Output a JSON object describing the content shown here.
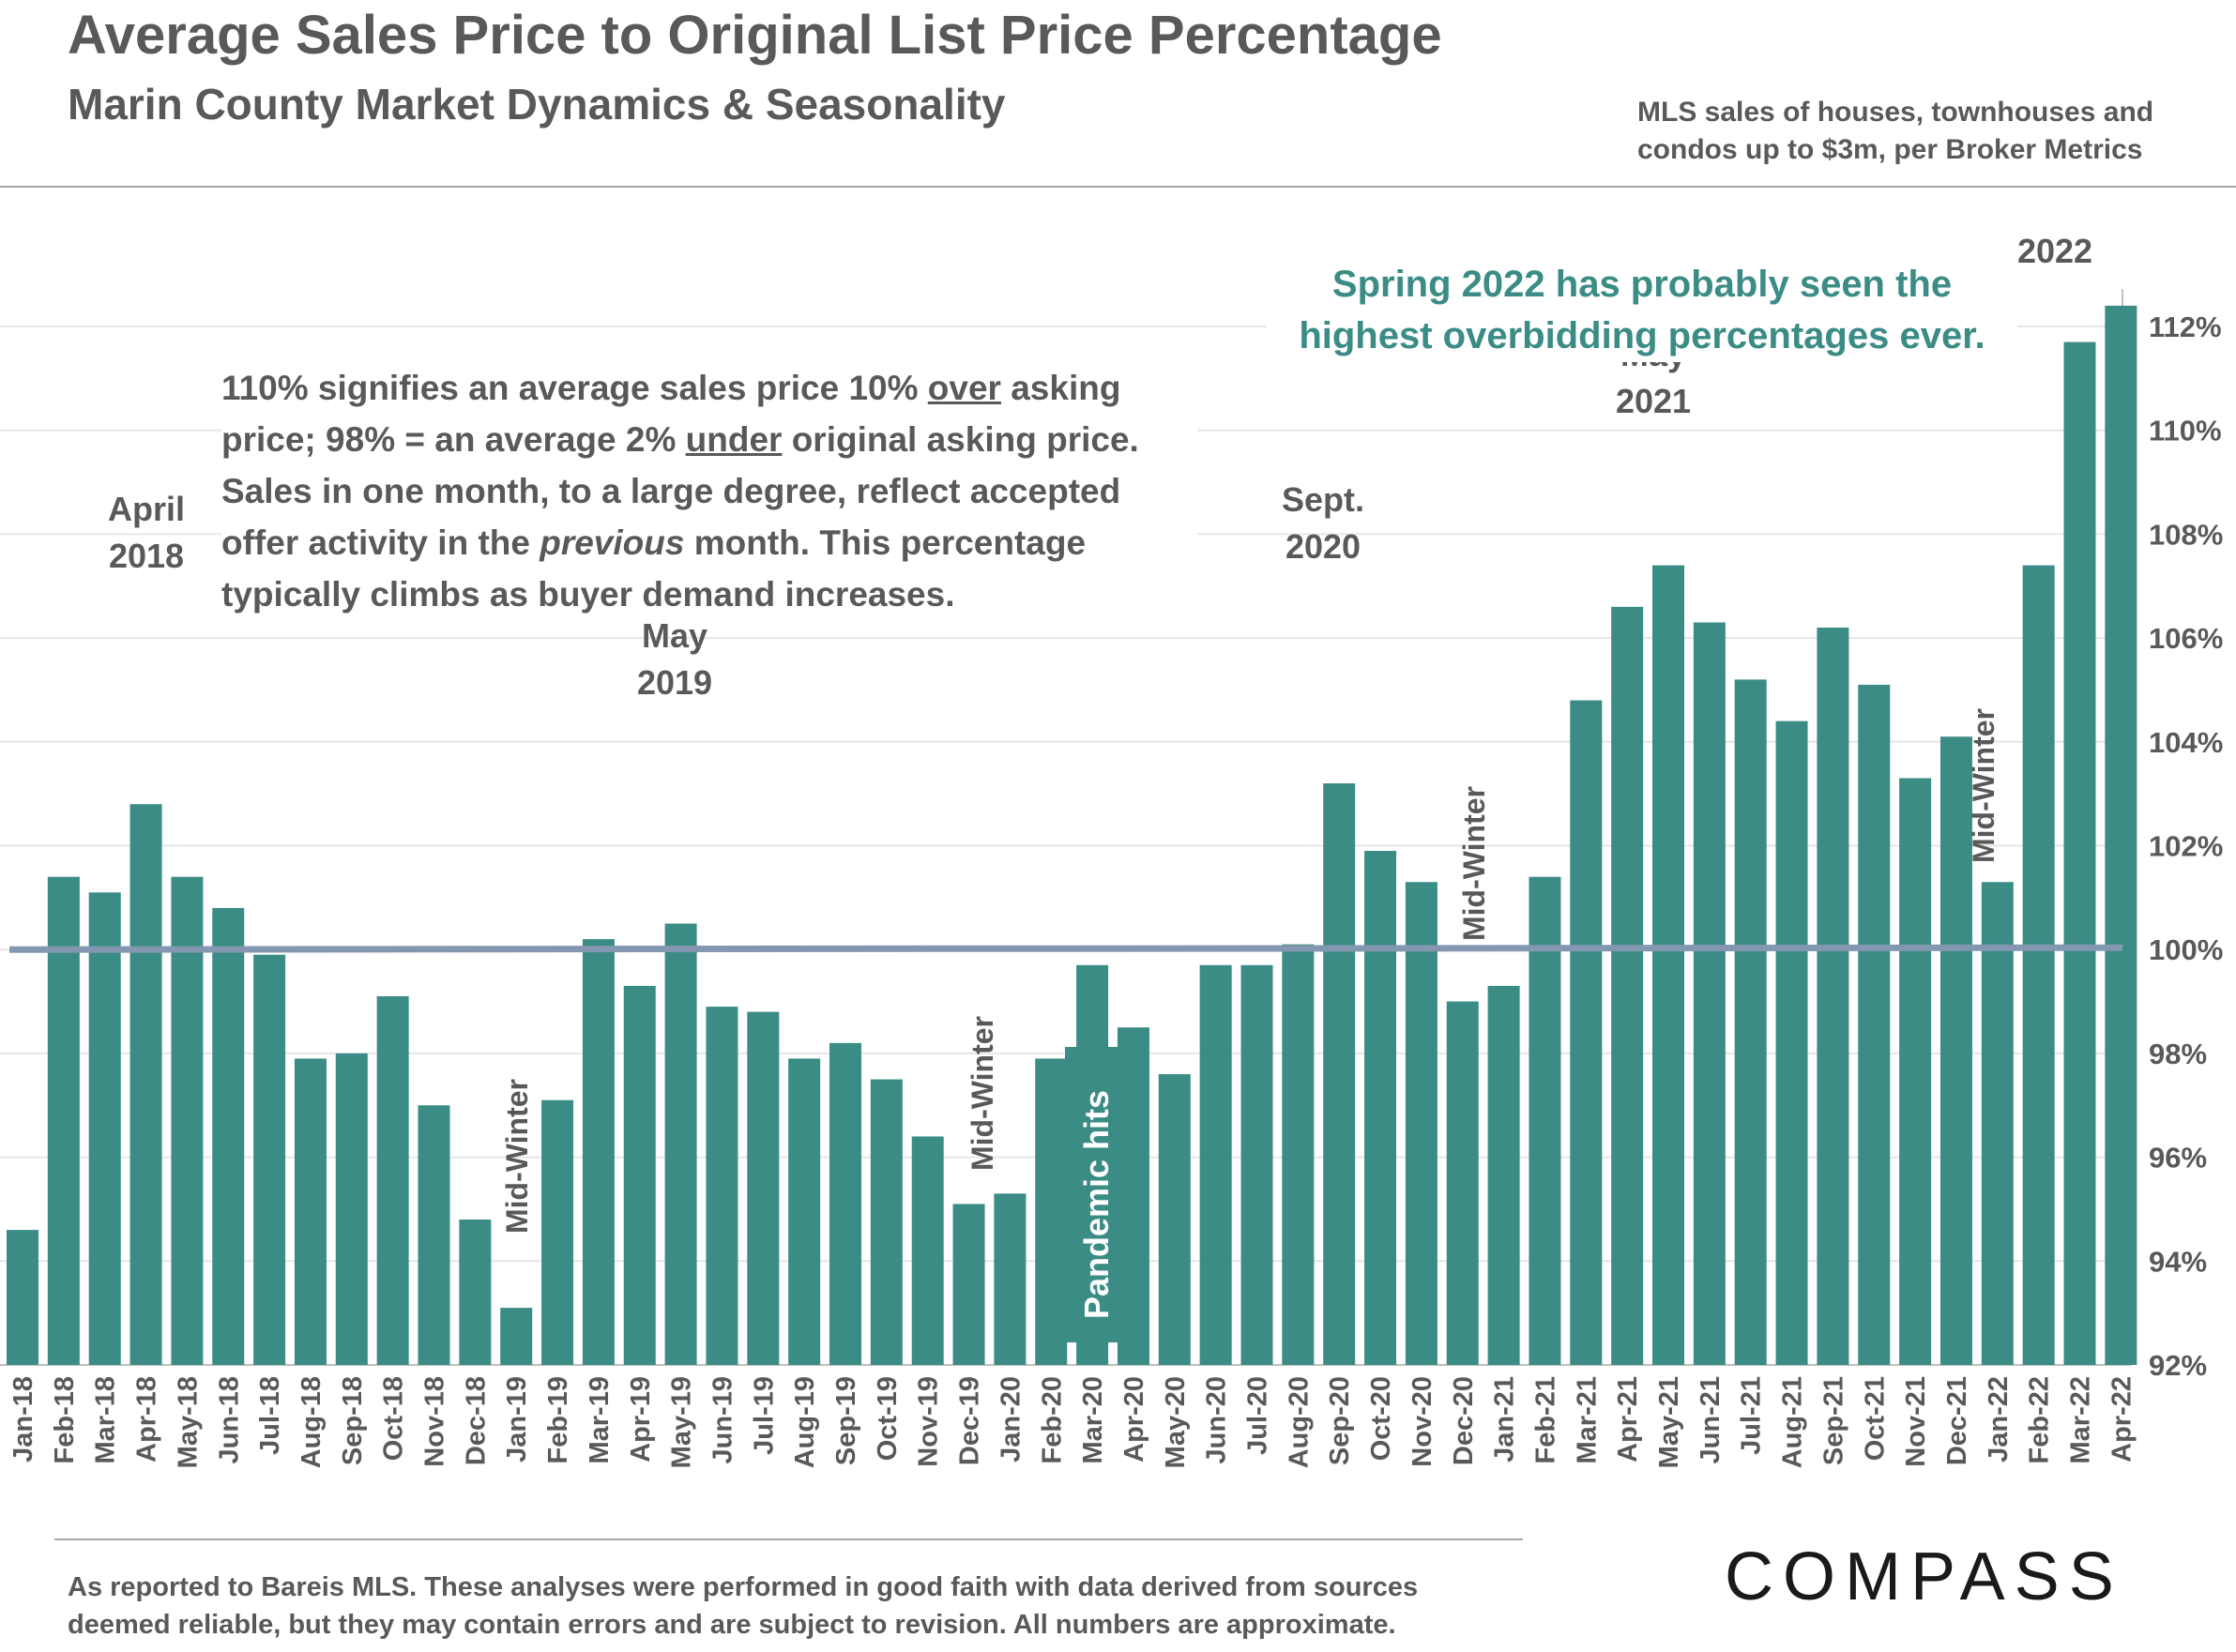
{
  "header": {
    "title": "Average Sales Price to Original List Price Percentage",
    "subtitle": "Marin County Market Dynamics & Seasonality",
    "source_lines": [
      "MLS sales of houses, townhouses and",
      "condos up to $3m, per Broker Metrics"
    ]
  },
  "note": {
    "line1_pre": "110% signifies an average sales price 10% ",
    "line1_u": "over",
    "line1_post": " asking",
    "line2_pre": "price; 98% = an average 2% ",
    "line2_u": "under",
    "line2_post": " original asking price.",
    "line3": "Sales in one month, to a large degree, reflect accepted",
    "line4_pre": "offer activity in the ",
    "line4_em": "previous",
    "line4_post": " month. This percentage",
    "line5": "typically climbs as buyer demand increases."
  },
  "callout": {
    "lines": [
      "Spring 2022 has probably seen the",
      "highest overbidding percentages ever."
    ]
  },
  "footer": {
    "lines": [
      "As reported to Bareis MLS. These analyses were performed in good faith with data derived from sources",
      "deemed reliable, but they may contain errors and are subject to revision. All numbers are  approximate."
    ],
    "brand": "COMPASS"
  },
  "colors": {
    "bar": "#3a8c85",
    "reference_line": "#8497b0",
    "callout": "#3a8c85",
    "text": "#595959"
  },
  "chart_data": {
    "type": "bar",
    "categories": [
      "Jan-18",
      "Feb-18",
      "Mar-18",
      "Apr-18",
      "May-18",
      "Jun-18",
      "Jul-18",
      "Aug-18",
      "Sep-18",
      "Oct-18",
      "Nov-18",
      "Dec-18",
      "Jan-19",
      "Feb-19",
      "Mar-19",
      "Apr-19",
      "May-19",
      "Jun-19",
      "Jul-19",
      "Aug-19",
      "Sep-19",
      "Oct-19",
      "Nov-19",
      "Dec-19",
      "Jan-20",
      "Feb-20",
      "Mar-20",
      "Apr-20",
      "May-20",
      "Jun-20",
      "Jul-20",
      "Aug-20",
      "Sep-20",
      "Oct-20",
      "Nov-20",
      "Dec-20",
      "Jan-21",
      "Feb-21",
      "Mar-21",
      "Apr-21",
      "May-21",
      "Jun-21",
      "Jul-21",
      "Aug-21",
      "Sep-21",
      "Oct-21",
      "Nov-21",
      "Dec-21",
      "Jan-22",
      "Feb-22",
      "Mar-22",
      "Apr-22"
    ],
    "values": [
      94.6,
      101.4,
      101.1,
      102.8,
      101.4,
      100.8,
      99.9,
      97.9,
      98.0,
      99.1,
      97.0,
      94.8,
      93.1,
      97.1,
      100.2,
      99.3,
      100.5,
      98.9,
      98.8,
      97.9,
      98.2,
      97.5,
      96.4,
      95.1,
      95.3,
      97.9,
      99.7,
      98.5,
      97.6,
      99.7,
      99.7,
      100.1,
      103.2,
      101.9,
      101.3,
      99.0,
      99.3,
      101.4,
      104.8,
      106.6,
      107.4,
      106.3,
      105.2,
      104.4,
      106.2,
      105.1,
      103.3,
      104.1,
      101.3,
      107.4,
      111.7,
      112.4
    ],
    "ylim": [
      92,
      113
    ],
    "y_ticks": [
      92,
      94,
      96,
      98,
      100,
      102,
      104,
      106,
      108,
      110,
      112
    ],
    "y_tick_labels": [
      "92%",
      "94%",
      "96%",
      "98%",
      "100%",
      "102%",
      "104%",
      "106%",
      "108%",
      "110%",
      "112%"
    ],
    "reference_line": 100,
    "grid": true,
    "y_axis_side": "right",
    "annotations": [
      {
        "text_lines": [
          "April",
          "2018"
        ],
        "anchor": "Apr-18",
        "orientation": "horizontal"
      },
      {
        "text_lines": [
          "May",
          "2019"
        ],
        "anchor": "May-19",
        "orientation": "horizontal"
      },
      {
        "text_lines": [
          "Sept.",
          "2020"
        ],
        "anchor": "Sep-20",
        "orientation": "horizontal"
      },
      {
        "text_lines": [
          "May",
          "2021"
        ],
        "anchor": "May-21",
        "orientation": "horizontal"
      },
      {
        "text_lines": [
          "2022"
        ],
        "anchor": "Mar-22",
        "orientation": "horizontal"
      },
      {
        "text_lines": [
          "Mid-Winter"
        ],
        "anchor": "Jan-19",
        "orientation": "vertical"
      },
      {
        "text_lines": [
          "Mid-Winter"
        ],
        "anchor": "Jan-20",
        "orientation": "vertical"
      },
      {
        "text_lines": [
          "Mid-Winter"
        ],
        "anchor": "Dec-20",
        "orientation": "vertical"
      },
      {
        "text_lines": [
          "Mid-Winter"
        ],
        "anchor": "Jan-22",
        "orientation": "vertical"
      },
      {
        "text_lines": [
          "Pandemic hits"
        ],
        "anchor": "Mar-20",
        "orientation": "vertical"
      }
    ]
  }
}
